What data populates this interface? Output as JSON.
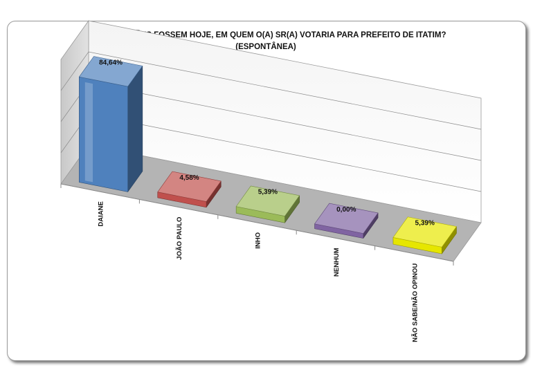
{
  "chart_data": {
    "type": "bar",
    "title": "SE AS ELEIÇÕES FOSSEM HOJE, EM QUEM O(A) SR(A) VOTARIA PARA PREFEITO DE ITATIM?",
    "subtitle": "(ESPONTÂNEA)",
    "categories": [
      "DAIANE",
      "JOÃO PAULO",
      "INHO",
      "NENHUM",
      "NÃO SABE/NÃO OPINOU"
    ],
    "values": [
      84.64,
      4.58,
      5.39,
      0.0,
      5.39
    ],
    "value_labels": [
      "84,64%",
      "4,58%",
      "5,39%",
      "0,00%",
      "5,39%"
    ],
    "colors": [
      "#4f81bd",
      "#c0504d",
      "#9bbb59",
      "#8064a2",
      "#e6e600"
    ],
    "ylim": [
      0,
      100
    ],
    "grid": true,
    "legend": "none",
    "style": "3d-column"
  }
}
